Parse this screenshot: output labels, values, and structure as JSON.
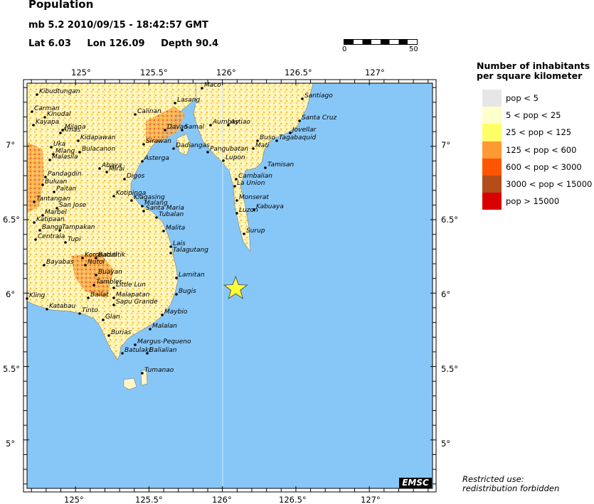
{
  "header": {
    "title": "Population",
    "event": "mb 5.2  2010/09/15 - 18:42:57 GMT",
    "lat": "Lat  6.03",
    "lon": "Lon 126.09",
    "depth": "Depth  90.4"
  },
  "scale": {
    "min_label": "0",
    "max_label": "50"
  },
  "map": {
    "lon_ticks": [
      "125°",
      "125.5°",
      "126°",
      "126.5°",
      "127°"
    ],
    "lat_ticks": [
      "7°",
      "6.5°",
      "6°",
      "5.5°",
      "5°"
    ],
    "epicenter": {
      "lat": 6.03,
      "lon": 126.09
    },
    "places": [
      "Maco",
      "Kibudtungan",
      "Lasang",
      "Santiago",
      "Carman",
      "Kinudal",
      "Calinan",
      "Kayapa",
      "Davao",
      "Samal",
      "Aumbay",
      "Astiao",
      "Santa Cruz",
      "Amas",
      "Milana",
      "Kidapawan",
      "Buso",
      "Mati",
      "Tagabaquid",
      "Jovellar",
      "Uka",
      "Sirawan",
      "Mlang",
      "Bulacanon",
      "Dadiangas",
      "Pangubatan",
      "Malasila",
      "Lupon",
      "Tamisan",
      "Asterga",
      "Abaya",
      "Mirai",
      "Pandagdin",
      "Digos",
      "Cambalian",
      "La Union",
      "Buluan",
      "Paitan",
      "Tantangan",
      "Kotipinga",
      "Kiagasing",
      "Malang",
      "Monserat",
      "Kabuaya",
      "San Jose",
      "Marbel",
      "Santa Maria",
      "Luzon",
      "Katipaan",
      "Tubalan",
      "Banga",
      "Tampakan",
      "Surup",
      "Malita",
      "Centrala",
      "Tupi",
      "Lais",
      "Talagutang",
      "Koronadal",
      "Batutitik",
      "Bayabas",
      "Nutol",
      "Buayan",
      "Lamitan",
      "Tambler",
      "Little Lun",
      "Bugis",
      "Kling",
      "Bailat",
      "Malapatan",
      "Katabau",
      "Sapu Grande",
      "Tinto",
      "Maybio",
      "Glan",
      "Malalan",
      "Burias",
      "Margus-Pequeno",
      "Batulaki",
      "Balialian",
      "Tumanao"
    ]
  },
  "legend": {
    "title_line1": "Number of inhabitants",
    "title_line2": "per square kilometer",
    "items": [
      {
        "label": "pop < 5",
        "color": "#e6e6e6"
      },
      {
        "label": "5 < pop < 25",
        "color": "#ffffcc"
      },
      {
        "label": "25 < pop < 125",
        "color": "#ffff66"
      },
      {
        "label": "125 < pop < 600",
        "color": "#ff9933"
      },
      {
        "label": "600 < pop < 3000",
        "color": "#ff5500"
      },
      {
        "label": "3000 < pop < 15000",
        "color": "#b34d1a"
      },
      {
        "label": "pop > 15000",
        "color": "#d90000"
      }
    ]
  },
  "footer": {
    "restricted_line1": "Restricted use:",
    "restricted_line2": "redistribution forbidden",
    "logo": "EMSC"
  },
  "colors": {
    "sea": "#87c7f7",
    "land": "#fffcd8",
    "epicenter": "#ffff33"
  }
}
